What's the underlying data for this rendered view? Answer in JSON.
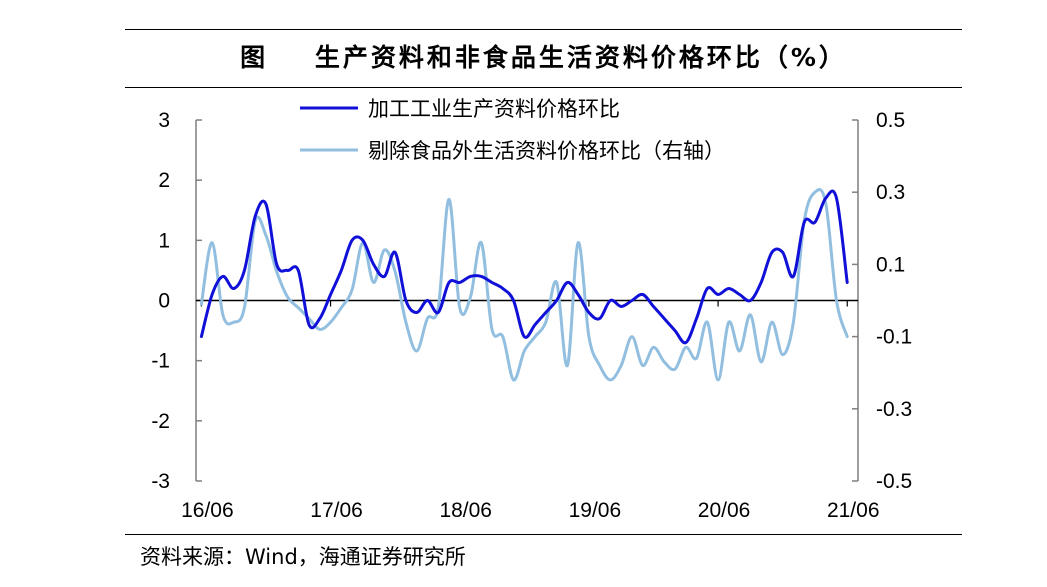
{
  "figure": {
    "title": "图    生产资料和非食品生活资料价格环比（%）",
    "source": "资料来源：Wind，海通证券研究所"
  },
  "colors": {
    "series1": "#1010d8",
    "series2": "#92bfe0",
    "axis": "#7f7f7f",
    "zero_line": "#000000"
  },
  "chart_data": {
    "type": "line",
    "title": "生产资料和非食品生活资料价格环比（%）",
    "xlabel": "",
    "ylabel": "",
    "ylim": [
      -3,
      3
    ],
    "y2lim": [
      -0.5,
      0.5
    ],
    "yticks": [
      "3",
      "2",
      "1",
      "0",
      "-1",
      "-2",
      "-3"
    ],
    "y2ticks": [
      "0.5",
      "0.3",
      "0.1",
      "-0.1",
      "-0.3",
      "-0.5"
    ],
    "x_tick_labels": [
      "16/06",
      "17/06",
      "18/06",
      "19/06",
      "20/06",
      "21/06"
    ],
    "x_tick_months": [
      0,
      12,
      24,
      36,
      48,
      60
    ],
    "legend_position": "top-center",
    "grid": false,
    "series": [
      {
        "name": "加工工业生产资料价格环比",
        "axis": "left",
        "x_months": [
          0,
          1,
          2,
          3,
          4,
          5,
          6,
          7,
          8,
          9,
          10,
          11,
          12,
          13,
          14,
          15,
          16,
          17,
          18,
          19,
          20,
          21,
          22,
          23,
          24,
          25,
          26,
          27,
          28,
          29,
          30,
          31,
          32,
          33,
          34,
          35,
          36,
          37,
          38,
          39,
          40,
          41,
          42,
          43,
          44,
          45,
          46,
          47,
          48,
          49,
          50,
          51,
          52,
          53,
          54,
          55,
          56,
          57,
          58,
          59,
          60
        ],
        "values": [
          -0.6,
          0.1,
          0.4,
          0.2,
          0.5,
          1.4,
          1.6,
          0.6,
          0.5,
          0.5,
          -0.4,
          -0.3,
          0.1,
          0.5,
          1.0,
          1.0,
          0.6,
          0.4,
          0.8,
          0.0,
          -0.2,
          0.0,
          -0.2,
          0.3,
          0.3,
          0.4,
          0.4,
          0.3,
          0.2,
          0.0,
          -0.6,
          -0.4,
          -0.2,
          0.0,
          0.3,
          0.1,
          -0.2,
          -0.3,
          0.0,
          -0.1,
          0.0,
          0.1,
          -0.1,
          -0.3,
          -0.5,
          -0.7,
          -0.3,
          0.2,
          0.1,
          0.2,
          0.1,
          0.0,
          0.3,
          0.8,
          0.8,
          0.4,
          1.3,
          1.3,
          1.7,
          1.7,
          0.3
        ]
      },
      {
        "name": "剔除食品外生活资料价格环比（右轴）",
        "axis": "right",
        "x_months": [
          0,
          1,
          2,
          3,
          4,
          5,
          6,
          7,
          8,
          9,
          10,
          11,
          12,
          13,
          14,
          15,
          16,
          17,
          18,
          19,
          20,
          21,
          22,
          23,
          24,
          25,
          26,
          27,
          28,
          29,
          30,
          31,
          32,
          33,
          34,
          35,
          36,
          37,
          38,
          39,
          40,
          41,
          42,
          43,
          44,
          45,
          46,
          47,
          48,
          49,
          50,
          51,
          52,
          53,
          54,
          55,
          56,
          57,
          58,
          59,
          60
        ],
        "values": [
          -0.01,
          0.16,
          -0.04,
          -0.06,
          -0.02,
          0.22,
          0.18,
          0.08,
          0.01,
          -0.02,
          -0.05,
          -0.08,
          -0.06,
          -0.02,
          0.03,
          0.16,
          0.05,
          0.14,
          0.08,
          -0.06,
          -0.14,
          -0.05,
          -0.02,
          0.28,
          -0.02,
          0.01,
          0.16,
          -0.08,
          -0.1,
          -0.22,
          -0.14,
          -0.1,
          -0.06,
          0.05,
          -0.18,
          0.16,
          -0.1,
          -0.18,
          -0.22,
          -0.18,
          -0.1,
          -0.18,
          -0.13,
          -0.17,
          -0.19,
          -0.13,
          -0.16,
          -0.06,
          -0.22,
          -0.06,
          -0.14,
          -0.04,
          -0.17,
          -0.06,
          -0.15,
          -0.06,
          0.22,
          0.3,
          0.27,
          0.0,
          -0.1
        ]
      }
    ]
  }
}
